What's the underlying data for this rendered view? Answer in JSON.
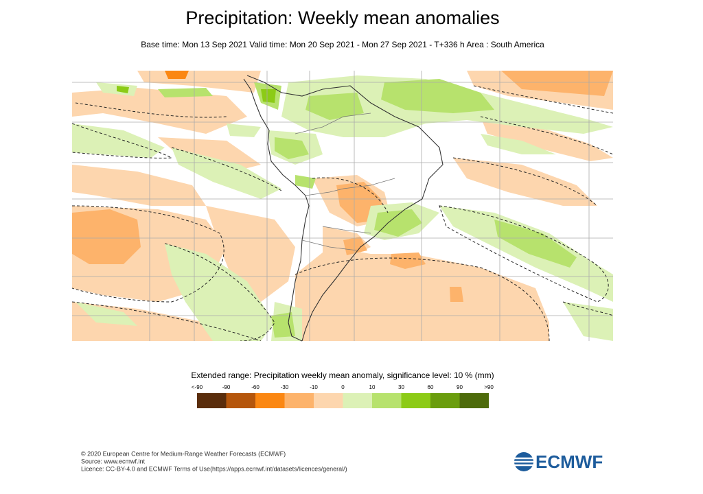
{
  "header": {
    "title": "Precipitation: Weekly mean anomalies",
    "subtitle": "Base time: Mon 13 Sep 2021 Valid time: Mon 20 Sep 2021 - Mon 27 Sep 2021 - T+336 h Area : South America"
  },
  "legend": {
    "title": "Extended range: Precipitation weekly mean anomaly, significance level: 10 % (mm)",
    "labels": [
      "<-90",
      -90,
      -60,
      -30,
      -10,
      0,
      10,
      30,
      60,
      90,
      ">90"
    ],
    "colors": [
      "#5a2d0c",
      "#b5560c",
      "#fb8712",
      "#fdb36b",
      "#fdd6ae",
      "#dcf1b6",
      "#b7e26d",
      "#8ccb16",
      "#6a9d0d",
      "#4d6b0b"
    ]
  },
  "footer": {
    "lines": [
      "© 2020 European Centre for Medium-Range Weather Forecasts (ECMWF)",
      "Source: www.ecmwf.int",
      "Licence: CC-BY-4.0 and ECMWF Terms of Use(https://apps.ecmwf.int/datasets/licences/general/)"
    ],
    "logo": "ECMWF"
  }
}
